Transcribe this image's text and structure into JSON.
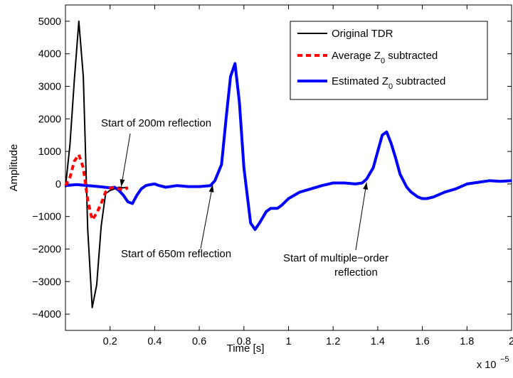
{
  "chart_data": {
    "type": "line",
    "xlabel": "Time [s]",
    "ylabel": "Amplitude",
    "x_exponent_label": "x 10",
    "x_exponent_sup": "−5",
    "xlim": [
      0.0,
      2.0
    ],
    "ylim": [
      -4500,
      5500
    ],
    "x_ticks": [
      0.2,
      0.4,
      0.6,
      0.8,
      1.0,
      1.2,
      1.4,
      1.6,
      1.8,
      2.0
    ],
    "x_tick_labels": [
      "0.2",
      "0.4",
      "0.6",
      "0.8",
      "1",
      "1.2",
      "1.4",
      "1.6",
      "1.8",
      "2"
    ],
    "y_ticks": [
      5000,
      4000,
      3000,
      2000,
      1000,
      0,
      -1000,
      -2000,
      -3000,
      -4000
    ],
    "y_tick_labels": [
      "5000",
      "4000",
      "3000",
      "2000",
      "1000",
      "0",
      "−1000",
      "−2000",
      "−3000",
      "−4000"
    ],
    "grid": false,
    "legend_position": "top-right",
    "series": [
      {
        "name": "Original TDR",
        "color": "#000000",
        "style": "solid",
        "x": [
          0.0,
          0.02,
          0.04,
          0.06,
          0.08,
          0.1,
          0.12,
          0.14,
          0.16,
          0.18,
          0.2,
          0.22,
          0.24,
          0.26,
          0.28
        ],
        "y": [
          -100,
          1200,
          3200,
          5000,
          3300,
          -1400,
          -3800,
          -3100,
          -1300,
          -300,
          -200,
          -150,
          -100,
          -120,
          -100
        ]
      },
      {
        "name": "Average Z",
        "name_sub": "0",
        "name_suffix": " subtracted",
        "color": "#ff0000",
        "style": "dashed",
        "x": [
          0.0,
          0.02,
          0.04,
          0.06,
          0.08,
          0.1,
          0.12,
          0.14,
          0.16,
          0.18,
          0.2,
          0.22,
          0.24,
          0.26,
          0.28
        ],
        "y": [
          -50,
          200,
          700,
          900,
          500,
          -500,
          -1100,
          -900,
          -600,
          -250,
          -130,
          -100,
          -150,
          -180,
          -120
        ]
      },
      {
        "name": "Estimated Z",
        "name_sub": "0",
        "name_suffix": " subtracted",
        "color": "#0000ff",
        "style": "solid",
        "x": [
          0.0,
          0.05,
          0.1,
          0.15,
          0.2,
          0.22,
          0.24,
          0.26,
          0.28,
          0.3,
          0.32,
          0.34,
          0.36,
          0.38,
          0.4,
          0.42,
          0.45,
          0.5,
          0.55,
          0.6,
          0.65,
          0.67,
          0.7,
          0.72,
          0.74,
          0.76,
          0.78,
          0.8,
          0.83,
          0.85,
          0.87,
          0.9,
          0.92,
          0.95,
          0.97,
          1.0,
          1.05,
          1.1,
          1.15,
          1.2,
          1.25,
          1.3,
          1.33,
          1.35,
          1.38,
          1.4,
          1.42,
          1.44,
          1.46,
          1.48,
          1.5,
          1.53,
          1.55,
          1.58,
          1.6,
          1.62,
          1.65,
          1.7,
          1.75,
          1.8,
          1.85,
          1.9,
          1.95,
          2.0
        ],
        "y": [
          -50,
          -20,
          -50,
          -80,
          -120,
          -100,
          -200,
          -350,
          -550,
          -600,
          -350,
          -150,
          -50,
          -20,
          0,
          -50,
          -100,
          -50,
          -80,
          -80,
          -50,
          100,
          600,
          2000,
          3300,
          3700,
          2500,
          500,
          -1200,
          -1400,
          -1200,
          -850,
          -750,
          -750,
          -650,
          -450,
          -250,
          -150,
          -50,
          30,
          30,
          0,
          30,
          150,
          500,
          1000,
          1500,
          1600,
          1250,
          800,
          300,
          -100,
          -250,
          -400,
          -450,
          -450,
          -400,
          -250,
          -150,
          0,
          50,
          100,
          80,
          100
        ]
      }
    ],
    "annotations": [
      {
        "id": "annot-200m",
        "text": "Start of 200m reflection",
        "target": [
          0.25,
          -80
        ]
      },
      {
        "id": "annot-650m",
        "text": "Start of 650m reflection",
        "target": [
          0.66,
          -30
        ]
      },
      {
        "id": "annot-multi",
        "lines": [
          "Start of multiple−order",
          "reflection"
        ],
        "target": [
          1.35,
          50
        ]
      }
    ]
  }
}
